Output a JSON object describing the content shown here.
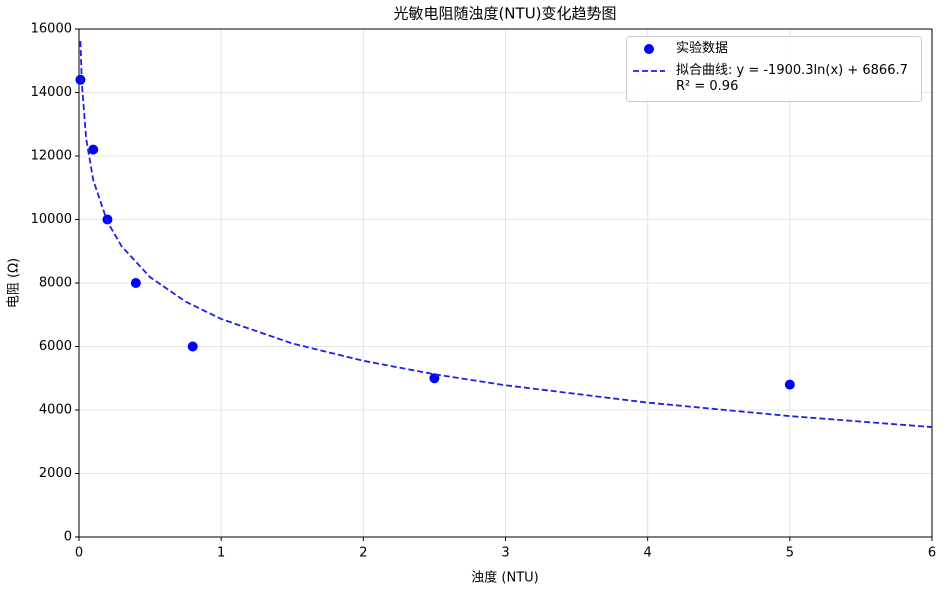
{
  "chart_data": {
    "type": "scatter",
    "title": "光敏电阻随浊度(NTU)变化趋势图",
    "xlabel": "浊度 (NTU)",
    "ylabel": "电阻 (Ω)",
    "xlim": [
      0,
      6
    ],
    "xticks": [
      0,
      1,
      2,
      3,
      4,
      5,
      6
    ],
    "ylim": [
      0,
      16000
    ],
    "yticks": [
      0,
      2000,
      4000,
      6000,
      8000,
      10000,
      12000,
      14000,
      16000
    ],
    "grid": true,
    "legend": "upper right",
    "series": [
      {
        "name": "实验数据",
        "type": "scatter",
        "color": "#0000ff",
        "x": [
          0.01,
          0.1,
          0.2,
          0.4,
          0.8,
          2.5,
          5
        ],
        "values": [
          14400,
          12200,
          10000,
          8000,
          6000,
          5000,
          4800
        ]
      },
      {
        "name": "拟合曲线: y = -1900.3ln(x) + 6866.7\nR² = 0.96",
        "type": "line",
        "color": "#1f1fe6",
        "dashed": true,
        "x": [
          0.01,
          0.02,
          0.05,
          0.1,
          0.2,
          0.3,
          0.5,
          0.75,
          1,
          1.5,
          2,
          2.5,
          3,
          4,
          5,
          6
        ],
        "values": [
          15618,
          14301,
          12560,
          11242,
          9925,
          9155,
          8184,
          7413,
          6867,
          6096,
          5550,
          5126,
          4779,
          4232,
          3808,
          3462
        ]
      }
    ]
  }
}
